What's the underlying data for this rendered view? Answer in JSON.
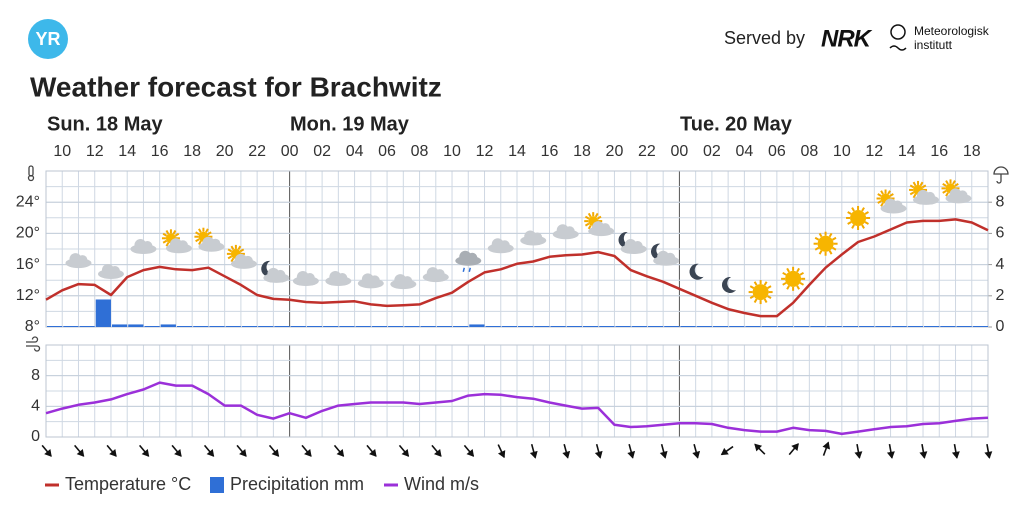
{
  "header": {
    "logo": "YR",
    "served_by": "Served by",
    "partner": "NRK",
    "institute": [
      "Meteorologisk",
      "institutt"
    ]
  },
  "title": "Weather forecast for Brachwitz",
  "days": [
    "Sun. 18 May",
    "Mon. 19 May",
    "Tue. 20 May"
  ],
  "chart_data": [
    {
      "type": "line",
      "categories": [
        null,
        "10",
        null,
        "12",
        null,
        "14",
        null,
        "16",
        null,
        "18",
        null,
        "20",
        null,
        "22",
        null,
        "00",
        null,
        "02",
        null,
        "04",
        null,
        "06",
        null,
        "08",
        null,
        "10",
        null,
        "12",
        null,
        "14",
        null,
        "16",
        null,
        "18",
        null,
        "20",
        null,
        "22",
        null,
        "00",
        null,
        "02",
        null,
        "04",
        null,
        "06",
        null,
        "08",
        null,
        "10",
        null,
        "12",
        null,
        "14",
        null,
        "16",
        null,
        "18",
        null
      ],
      "series": [
        {
          "name": "Temperature °C",
          "type": "line",
          "color": "#c0302b",
          "values": [
            11.5,
            12.7,
            13.5,
            13.4,
            12.1,
            14.4,
            15.3,
            15.7,
            15.4,
            15.3,
            15.6,
            14.5,
            13.4,
            12.1,
            11.6,
            11.5,
            11.2,
            11.1,
            11.2,
            11.3,
            10.9,
            10.7,
            10.8,
            10.9,
            11.7,
            12.4,
            13.8,
            15.0,
            15.4,
            16.1,
            16.4,
            17.0,
            17.2,
            17.3,
            17.6,
            17.1,
            15.3,
            14.5,
            13.8,
            12.9,
            12.0,
            11.1,
            10.3,
            9.8,
            9.4,
            9.4,
            11.1,
            13.4,
            15.6,
            17.3,
            18.9,
            19.6,
            20.5,
            21.4,
            21.6,
            21.6,
            21.8,
            21.4,
            20.4
          ]
        },
        {
          "name": "Precipitation mm",
          "type": "bar",
          "axis": "y2",
          "color": "#2f6fd6",
          "values": [
            0,
            0,
            0,
            1.7,
            0.1,
            0.1,
            0,
            0.1,
            0,
            0,
            0,
            0,
            0,
            0,
            0,
            0,
            0,
            0,
            0,
            0,
            0,
            0,
            0,
            0,
            0,
            0,
            0.1,
            0,
            0,
            0,
            0,
            0,
            0,
            0,
            0,
            0,
            0,
            0,
            0,
            0,
            0,
            0,
            0,
            0,
            0,
            0,
            0,
            0,
            0,
            0,
            0,
            0,
            0,
            0,
            0,
            0,
            0,
            0,
            0
          ]
        }
      ],
      "ylim": [
        8,
        28
      ],
      "yticks": [
        {
          "value": 8,
          "label": "8°"
        },
        {
          "value": 12,
          "label": "12°"
        },
        {
          "value": 16,
          "label": "16°"
        },
        {
          "value": 20,
          "label": "20°"
        },
        {
          "value": 24,
          "label": "24°"
        }
      ],
      "y2lim": [
        0,
        10
      ],
      "y2ticks": [
        0,
        2,
        4,
        6,
        8
      ],
      "grid": true
    },
    {
      "type": "line",
      "series": [
        {
          "name": "Wind m/s",
          "type": "line",
          "color": "#9b30d9",
          "values": [
            3.1,
            3.7,
            4.2,
            4.5,
            4.9,
            5.6,
            6.2,
            7.1,
            6.7,
            6.7,
            5.6,
            4.1,
            4.1,
            2.9,
            2.4,
            3.1,
            2.5,
            3.4,
            4.1,
            4.3,
            4.5,
            4.5,
            4.5,
            4.3,
            4.5,
            4.7,
            5.4,
            5.6,
            5.5,
            5.2,
            5.0,
            4.5,
            4.1,
            3.7,
            3.8,
            1.6,
            1.3,
            1.4,
            1.6,
            1.8,
            1.8,
            1.7,
            1.2,
            0.9,
            0.7,
            0.7,
            1.2,
            0.9,
            0.8,
            0.4,
            0.7,
            1.0,
            1.3,
            1.4,
            1.7,
            1.8,
            2.1,
            2.4,
            2.5
          ]
        }
      ],
      "wind_direction": [
        140,
        null,
        140,
        null,
        140,
        null,
        140,
        null,
        140,
        null,
        140,
        null,
        140,
        null,
        140,
        null,
        140,
        null,
        140,
        null,
        140,
        null,
        140,
        null,
        140,
        null,
        140,
        null,
        155,
        null,
        165,
        null,
        165,
        null,
        165,
        null,
        165,
        null,
        165,
        null,
        165,
        null,
        235,
        null,
        315,
        null,
        40,
        null,
        20,
        null,
        170,
        null,
        170,
        null,
        170,
        null,
        170,
        null,
        170
      ],
      "ylim": [
        0,
        12
      ],
      "yticks": [
        0,
        4,
        8
      ],
      "grid": true
    }
  ]
}
